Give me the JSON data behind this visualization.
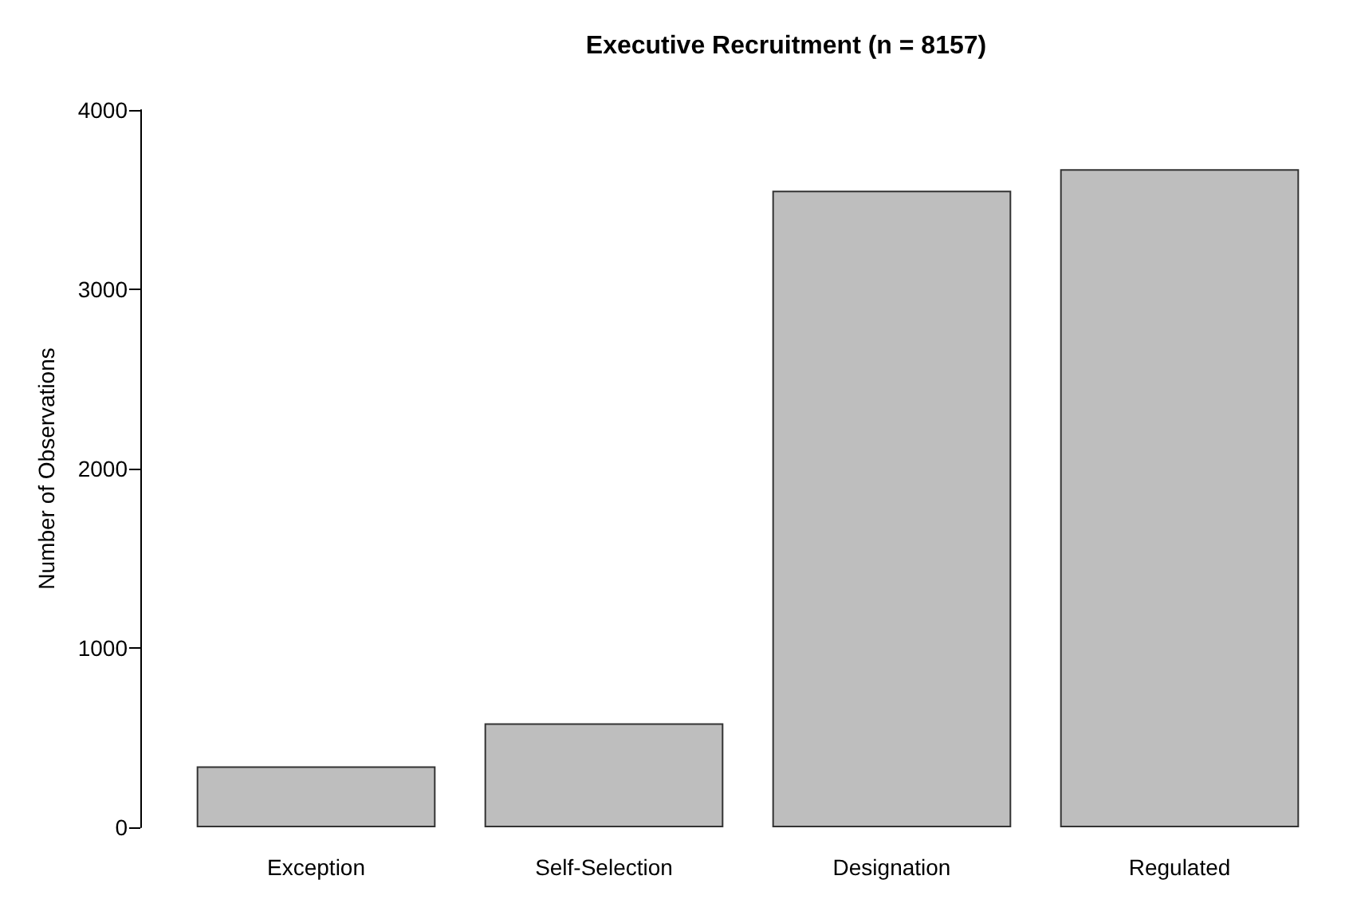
{
  "chart_data": {
    "type": "bar",
    "title": "Executive Recruitment (n = 8157)",
    "ylabel": "Number of Observations",
    "categories": [
      "Exception",
      "Self-Selection",
      "Designation",
      "Regulated"
    ],
    "values": [
      340,
      580,
      3550,
      3670
    ],
    "color": "#bebebe",
    "ylim": [
      0,
      4000
    ],
    "yticks": [
      0,
      1000,
      2000,
      3000,
      4000
    ],
    "grid": false
  }
}
